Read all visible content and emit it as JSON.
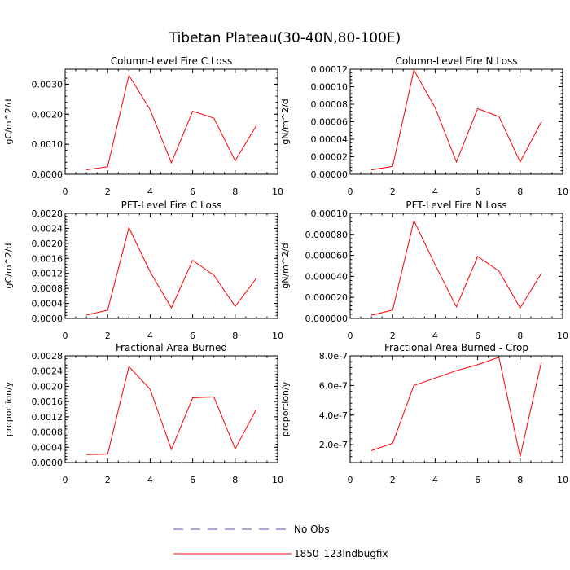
{
  "figure": {
    "title": "Tibetan Plateau(30-40N,80-100E)",
    "legend": [
      {
        "label": "No Obs",
        "color": "#5555cc",
        "style": "dashed"
      },
      {
        "label": "1850_123lndbugfix",
        "color": "#ff0000",
        "style": "solid"
      }
    ]
  },
  "chart_data": [
    {
      "type": "line",
      "title": "Column-Level Fire C Loss",
      "xlabel": "",
      "ylabel": "gC/m^2/d",
      "xlim": [
        0,
        10
      ],
      "ylim": [
        0,
        0.0035
      ],
      "xticks": [
        0,
        2,
        4,
        6,
        8,
        10
      ],
      "xtick_labels": [
        "0",
        "2",
        "4",
        "6",
        "8",
        "10"
      ],
      "yticks": [
        0,
        0.001,
        0.002,
        0.003
      ],
      "ytick_labels": [
        "0.0000",
        "0.0010",
        "0.0020",
        "0.0030"
      ],
      "x": [
        1,
        2,
        3,
        4,
        5,
        6,
        7,
        8,
        9
      ],
      "series": [
        {
          "name": "1850_123lndbugfix",
          "color": "#ff0000",
          "values": [
            0.00015,
            0.00025,
            0.0033,
            0.00215,
            0.00038,
            0.0021,
            0.00187,
            0.00045,
            0.00162
          ]
        }
      ]
    },
    {
      "type": "line",
      "title": "Column-Level Fire N Loss",
      "xlabel": "",
      "ylabel": "gN/m^2/d",
      "xlim": [
        0,
        10
      ],
      "ylim": [
        0,
        0.00012
      ],
      "xticks": [
        0,
        2,
        4,
        6,
        8,
        10
      ],
      "xtick_labels": [
        "0",
        "2",
        "4",
        "6",
        "8",
        "10"
      ],
      "yticks": [
        0,
        2e-05,
        4e-05,
        6e-05,
        8e-05,
        0.0001,
        0.00012
      ],
      "ytick_labels": [
        "0.00000",
        "0.00002",
        "0.00004",
        "0.00006",
        "0.00008",
        "0.00010",
        "0.00012"
      ],
      "x": [
        1,
        2,
        3,
        4,
        5,
        6,
        7,
        8,
        9
      ],
      "series": [
        {
          "name": "1850_123lndbugfix",
          "color": "#ff0000",
          "values": [
            5e-06,
            9e-06,
            0.000119,
            7.6e-05,
            1.4e-05,
            7.5e-05,
            6.6e-05,
            1.4e-05,
            6e-05
          ]
        }
      ]
    },
    {
      "type": "line",
      "title": "PFT-Level Fire C Loss",
      "xlabel": "",
      "ylabel": "gC/m^2/d",
      "xlim": [
        0,
        10
      ],
      "ylim": [
        0,
        0.0028
      ],
      "xticks": [
        0,
        2,
        4,
        6,
        8,
        10
      ],
      "xtick_labels": [
        "0",
        "2",
        "4",
        "6",
        "8",
        "10"
      ],
      "yticks": [
        0,
        0.0004,
        0.0008,
        0.0012,
        0.0016,
        0.002,
        0.0024,
        0.0028
      ],
      "ytick_labels": [
        "0.0000",
        "0.0004",
        "0.0008",
        "0.0012",
        "0.0016",
        "0.0020",
        "0.0024",
        "0.0028"
      ],
      "x": [
        1,
        2,
        3,
        4,
        5,
        6,
        7,
        8,
        9
      ],
      "series": [
        {
          "name": "1850_123lndbugfix",
          "color": "#ff0000",
          "values": [
            9e-05,
            0.00022,
            0.00242,
            0.00124,
            0.00028,
            0.00155,
            0.00115,
            0.00032,
            0.00107
          ]
        }
      ]
    },
    {
      "type": "line",
      "title": "PFT-Level Fire N Loss",
      "xlabel": "",
      "ylabel": "gN/m^2/d",
      "xlim": [
        0,
        10
      ],
      "ylim": [
        0,
        0.0001
      ],
      "xticks": [
        0,
        2,
        4,
        6,
        8,
        10
      ],
      "xtick_labels": [
        "0",
        "2",
        "4",
        "6",
        "8",
        "10"
      ],
      "yticks": [
        0,
        2e-05,
        4e-05,
        6e-05,
        8e-05,
        0.0001
      ],
      "ytick_labels": [
        "0.000000",
        "0.000020",
        "0.000040",
        "0.000060",
        "0.000080",
        "0.00010"
      ],
      "x": [
        1,
        2,
        3,
        4,
        5,
        6,
        7,
        8,
        9
      ],
      "series": [
        {
          "name": "1850_123lndbugfix",
          "color": "#ff0000",
          "values": [
            3e-06,
            8e-06,
            9.3e-05,
            5.1e-05,
            1.1e-05,
            5.9e-05,
            4.5e-05,
            1e-05,
            4.3e-05
          ]
        }
      ]
    },
    {
      "type": "line",
      "title": "Fractional Area Burned",
      "xlabel": "",
      "ylabel": "proportion/y",
      "xlim": [
        0,
        10
      ],
      "ylim": [
        0,
        0.0028
      ],
      "xticks": [
        0,
        2,
        4,
        6,
        8,
        10
      ],
      "xtick_labels": [
        "0",
        "2",
        "4",
        "6",
        "8",
        "10"
      ],
      "yticks": [
        0,
        0.0004,
        0.0008,
        0.0012,
        0.0016,
        0.002,
        0.0024,
        0.0028
      ],
      "ytick_labels": [
        "0.0000",
        "0.0004",
        "0.0008",
        "0.0012",
        "0.0016",
        "0.0020",
        "0.0024",
        "0.0028"
      ],
      "x": [
        1,
        2,
        3,
        4,
        5,
        6,
        7,
        8,
        9
      ],
      "series": [
        {
          "name": "1850_123lndbugfix",
          "color": "#ff0000",
          "values": [
            0.00021,
            0.00022,
            0.00252,
            0.00192,
            0.00034,
            0.0017,
            0.00172,
            0.00036,
            0.0014
          ]
        }
      ]
    },
    {
      "type": "line",
      "title": "Fractional Area Burned - Crop",
      "xlabel": "",
      "ylabel": "proportion/y",
      "xlim": [
        0,
        10
      ],
      "ylim": [
        8e-08,
        8e-07
      ],
      "xticks": [
        0,
        2,
        4,
        6,
        8,
        10
      ],
      "xtick_labels": [
        "0",
        "2",
        "4",
        "6",
        "8",
        "10"
      ],
      "yticks": [
        2e-07,
        4e-07,
        6e-07,
        8e-07
      ],
      "ytick_labels": [
        "2.0e-7",
        "4.0e-7",
        "6.0e-7",
        "8.0e-7"
      ],
      "x": [
        1,
        2,
        3,
        4,
        5,
        6,
        7,
        8,
        9
      ],
      "series": [
        {
          "name": "1850_123lndbugfix",
          "color": "#ff0000",
          "values": [
            1.6e-07,
            2.1e-07,
            6e-07,
            6.5e-07,
            7e-07,
            7.4e-07,
            7.9e-07,
            1.2e-07,
            7.6e-07
          ]
        }
      ]
    }
  ]
}
